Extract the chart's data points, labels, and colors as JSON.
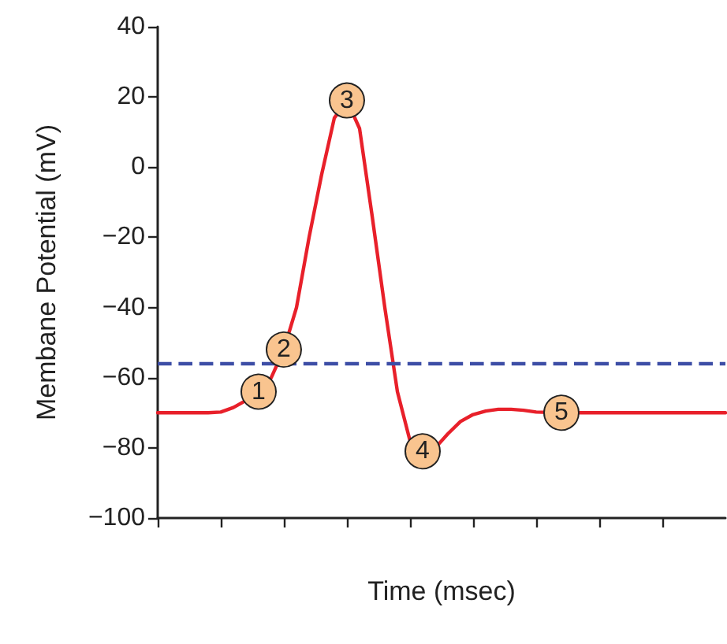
{
  "chart_data": {
    "type": "line",
    "xlabel": "Time (msec)",
    "ylabel": "Membane Potential (mV)",
    "categories": [
      null,
      null,
      null,
      null,
      null,
      null,
      null,
      null,
      null,
      null,
      null,
      null,
      null,
      null,
      null,
      null,
      null,
      null,
      null,
      null,
      null,
      null,
      null,
      null,
      null,
      null,
      null,
      null,
      null,
      null,
      null,
      null,
      null,
      null,
      null,
      null,
      null,
      null,
      null,
      null,
      null,
      null,
      null,
      null,
      null,
      null
    ],
    "series": [
      {
        "color": "#e8202a",
        "values": [
          -70,
          -70,
          -70,
          -70,
          -70,
          -69.8,
          -68.5,
          -66.5,
          -64,
          -60,
          -52,
          -40,
          -20,
          -2,
          14,
          19,
          11,
          -14,
          -40,
          -64,
          -78,
          -81,
          -80,
          -76,
          -72.5,
          -70.5,
          -69.5,
          -69,
          -69,
          -69.3,
          -69.8,
          -69.9,
          -70,
          -70,
          -70,
          -70,
          -70,
          -70,
          -70,
          -70,
          -70,
          -70,
          -70,
          -70,
          -70,
          -70
        ]
      }
    ],
    "annotations": [
      {
        "text": "1",
        "y": -64
      },
      {
        "text": "2",
        "y": -52
      },
      {
        "text": "3",
        "y": 19
      },
      {
        "text": "4",
        "y": -81
      },
      {
        "text": "5",
        "y": -70
      }
    ],
    "ylim": [
      -100,
      40
    ],
    "yticks": [
      -100,
      -80,
      -60,
      -40,
      -20,
      0,
      20,
      40
    ],
    "tick_labels": "y",
    "grid": false,
    "line_style": "solid",
    "ref_lines": [
      {
        "axis": "y",
        "value": -56,
        "color": "#3d4ea6",
        "line_style": "dashed"
      }
    ]
  }
}
